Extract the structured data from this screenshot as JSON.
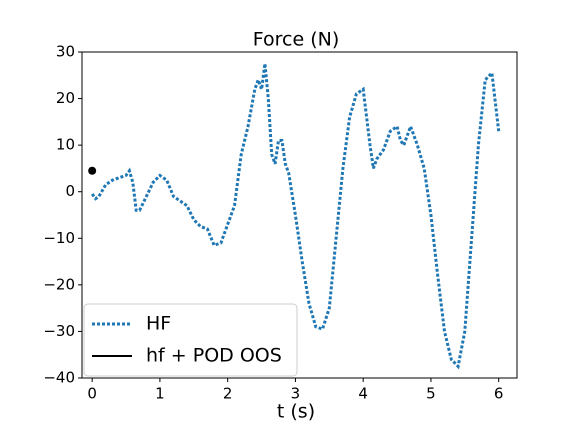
{
  "chart_data": {
    "type": "line",
    "title": "Force (N)",
    "x_label": "t (s)",
    "x": [
      0,
      0.05,
      0.1,
      0.2,
      0.3,
      0.4,
      0.5,
      0.55,
      0.6,
      0.65,
      0.7,
      0.8,
      0.9,
      1.0,
      1.1,
      1.2,
      1.3,
      1.4,
      1.5,
      1.6,
      1.7,
      1.8,
      1.9,
      2.0,
      2.1,
      2.2,
      2.3,
      2.4,
      2.45,
      2.5,
      2.55,
      2.6,
      2.65,
      2.7,
      2.75,
      2.8,
      2.85,
      2.9,
      3.0,
      3.1,
      3.2,
      3.3,
      3.4,
      3.5,
      3.6,
      3.7,
      3.8,
      3.9,
      4.0,
      4.1,
      4.15,
      4.2,
      4.3,
      4.4,
      4.5,
      4.55,
      4.6,
      4.7,
      4.8,
      4.9,
      5.0,
      5.1,
      5.2,
      5.3,
      5.4,
      5.5,
      5.6,
      5.7,
      5.8,
      5.9,
      6.0
    ],
    "series": [
      {
        "name": "HF",
        "color": "#1f77b4",
        "style": "dotted",
        "values": [
          -0.5,
          -1.5,
          -1,
          1.5,
          2.5,
          3,
          3.5,
          4.5,
          2,
          -4,
          -4,
          -1,
          2,
          3.5,
          2.5,
          -1,
          -2,
          -3,
          -6,
          -7.5,
          -8,
          -11.5,
          -11,
          -7,
          -3,
          8,
          14,
          22,
          24,
          22,
          27.5,
          20,
          8,
          6,
          11,
          11,
          6,
          4,
          -5,
          -15,
          -24,
          -29,
          -29.5,
          -25,
          -10,
          5,
          16,
          21,
          22,
          10,
          5,
          7,
          9,
          13,
          14,
          11,
          10,
          14,
          10,
          5,
          -5,
          -18,
          -30,
          -36,
          -37.5,
          -30,
          -10,
          10,
          24,
          25.5,
          13
        ]
      },
      {
        "name": "hf + POD OOS",
        "color": "#000000",
        "style": "solid",
        "values": [
          4.5,
          null,
          null,
          null,
          null,
          null,
          null,
          null,
          null,
          null,
          null,
          null,
          null,
          null,
          null,
          null,
          null,
          null,
          null,
          null,
          null,
          null,
          null,
          null,
          null,
          null,
          null,
          null,
          null,
          null,
          null,
          null,
          null,
          null,
          null,
          null,
          null,
          null,
          null,
          null,
          null,
          null,
          null,
          null,
          null,
          null,
          null,
          null,
          null,
          null,
          null,
          null,
          null,
          null,
          null,
          null,
          null,
          null,
          null,
          null,
          null,
          null,
          null,
          null,
          null,
          null,
          null,
          null,
          null,
          null,
          null
        ]
      }
    ],
    "xlim": [
      -0.15,
      6.27
    ],
    "ylim": [
      -40,
      30
    ],
    "xticks": [
      0,
      1,
      2,
      3,
      4,
      5,
      6
    ],
    "yticks": [
      {
        "value": -40,
        "label": "−40"
      },
      {
        "value": -30,
        "label": "−30"
      },
      {
        "value": -20,
        "label": "−20"
      },
      {
        "value": -10,
        "label": "−10"
      },
      0,
      10,
      20,
      30
    ],
    "legend": "lower left"
  }
}
